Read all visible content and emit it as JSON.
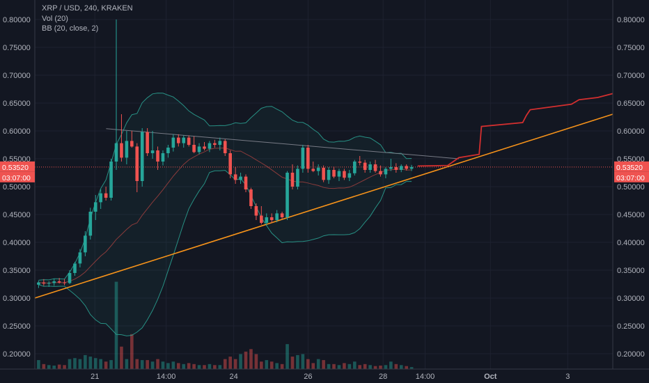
{
  "legend": {
    "symbol": "XRP / USD, 240, KRAKEN",
    "volume": "Vol (20)",
    "bb": "BB (20, close, 2)"
  },
  "colors": {
    "background": "#131722",
    "up": "#26a69a",
    "down": "#ef5350",
    "bb_band": "#2a9d8f",
    "bb_basis": "#8a3b3b",
    "trendline": "#f7931a",
    "projection": "#d32f2f",
    "resistance": "#787b86",
    "price_tag": "#ef5350"
  },
  "chart_data": {
    "type": "candlestick",
    "title": "XRP / USD, 240, KRAKEN",
    "ylim": [
      0.18,
      0.82
    ],
    "y_ticks": [
      "0.80000",
      "0.75000",
      "0.70000",
      "0.65000",
      "0.60000",
      "0.55000",
      "0.50000",
      "0.45000",
      "0.40000",
      "0.35000",
      "0.30000",
      "0.25000",
      "0.20000"
    ],
    "y_tick_values": [
      0.8,
      0.75,
      0.7,
      0.65,
      0.6,
      0.55,
      0.5,
      0.45,
      0.4,
      0.35,
      0.3,
      0.25,
      0.2
    ],
    "x_ticks": [
      {
        "label": "21",
        "x": 0.1
      },
      {
        "label": "14:00",
        "x": 1.05
      },
      {
        "label": "24",
        "x": 1.95
      },
      {
        "label": "26",
        "x": 2.94
      },
      {
        "label": "28",
        "x": 3.94
      },
      {
        "label": "14:00",
        "x": 4.5
      },
      {
        "label": "Oct",
        "x": 5.37,
        "bold": true
      },
      {
        "label": "3",
        "x": 6.4
      }
    ],
    "xlim": [
      -0.7,
      7.0
    ],
    "current_price": "0.53520",
    "current_price_value": 0.5352,
    "countdown": "03:07:00",
    "candles": [
      {
        "o": 0.324,
        "h": 0.331,
        "l": 0.318,
        "c": 0.328
      },
      {
        "o": 0.328,
        "h": 0.334,
        "l": 0.322,
        "c": 0.326
      },
      {
        "o": 0.326,
        "h": 0.33,
        "l": 0.32,
        "c": 0.327
      },
      {
        "o": 0.327,
        "h": 0.335,
        "l": 0.322,
        "c": 0.33
      },
      {
        "o": 0.33,
        "h": 0.336,
        "l": 0.326,
        "c": 0.328
      },
      {
        "o": 0.328,
        "h": 0.334,
        "l": 0.323,
        "c": 0.327
      },
      {
        "o": 0.327,
        "h": 0.35,
        "l": 0.325,
        "c": 0.345
      },
      {
        "o": 0.345,
        "h": 0.365,
        "l": 0.34,
        "c": 0.362
      },
      {
        "o": 0.362,
        "h": 0.388,
        "l": 0.355,
        "c": 0.382
      },
      {
        "o": 0.382,
        "h": 0.42,
        "l": 0.375,
        "c": 0.412
      },
      {
        "o": 0.412,
        "h": 0.462,
        "l": 0.405,
        "c": 0.455
      },
      {
        "o": 0.455,
        "h": 0.485,
        "l": 0.44,
        "c": 0.472
      },
      {
        "o": 0.472,
        "h": 0.495,
        "l": 0.46,
        "c": 0.488
      },
      {
        "o": 0.488,
        "h": 0.5,
        "l": 0.475,
        "c": 0.48
      },
      {
        "o": 0.48,
        "h": 0.55,
        "l": 0.475,
        "c": 0.545
      },
      {
        "o": 0.545,
        "h": 0.8,
        "l": 0.53,
        "c": 0.578
      },
      {
        "o": 0.578,
        "h": 0.63,
        "l": 0.545,
        "c": 0.552
      },
      {
        "o": 0.552,
        "h": 0.6,
        "l": 0.54,
        "c": 0.582
      },
      {
        "o": 0.582,
        "h": 0.6,
        "l": 0.57,
        "c": 0.572
      },
      {
        "o": 0.572,
        "h": 0.578,
        "l": 0.49,
        "c": 0.51
      },
      {
        "o": 0.51,
        "h": 0.605,
        "l": 0.5,
        "c": 0.598
      },
      {
        "o": 0.598,
        "h": 0.605,
        "l": 0.555,
        "c": 0.56
      },
      {
        "o": 0.56,
        "h": 0.6,
        "l": 0.55,
        "c": 0.565
      },
      {
        "o": 0.565,
        "h": 0.572,
        "l": 0.53,
        "c": 0.545
      },
      {
        "o": 0.545,
        "h": 0.565,
        "l": 0.538,
        "c": 0.56
      },
      {
        "o": 0.56,
        "h": 0.575,
        "l": 0.552,
        "c": 0.57
      },
      {
        "o": 0.57,
        "h": 0.594,
        "l": 0.563,
        "c": 0.588
      },
      {
        "o": 0.588,
        "h": 0.594,
        "l": 0.572,
        "c": 0.578
      },
      {
        "o": 0.578,
        "h": 0.592,
        "l": 0.57,
        "c": 0.588
      },
      {
        "o": 0.588,
        "h": 0.592,
        "l": 0.572,
        "c": 0.575
      },
      {
        "o": 0.575,
        "h": 0.59,
        "l": 0.56,
        "c": 0.562
      },
      {
        "o": 0.562,
        "h": 0.578,
        "l": 0.558,
        "c": 0.572
      },
      {
        "o": 0.572,
        "h": 0.58,
        "l": 0.565,
        "c": 0.568
      },
      {
        "o": 0.568,
        "h": 0.582,
        "l": 0.562,
        "c": 0.578
      },
      {
        "o": 0.578,
        "h": 0.584,
        "l": 0.57,
        "c": 0.575
      },
      {
        "o": 0.575,
        "h": 0.588,
        "l": 0.565,
        "c": 0.582
      },
      {
        "o": 0.582,
        "h": 0.585,
        "l": 0.555,
        "c": 0.56
      },
      {
        "o": 0.56,
        "h": 0.565,
        "l": 0.515,
        "c": 0.522
      },
      {
        "o": 0.522,
        "h": 0.535,
        "l": 0.505,
        "c": 0.512
      },
      {
        "o": 0.512,
        "h": 0.525,
        "l": 0.505,
        "c": 0.518
      },
      {
        "o": 0.518,
        "h": 0.522,
        "l": 0.49,
        "c": 0.495
      },
      {
        "o": 0.495,
        "h": 0.498,
        "l": 0.46,
        "c": 0.465
      },
      {
        "o": 0.465,
        "h": 0.47,
        "l": 0.44,
        "c": 0.448
      },
      {
        "o": 0.448,
        "h": 0.465,
        "l": 0.432,
        "c": 0.435
      },
      {
        "o": 0.435,
        "h": 0.452,
        "l": 0.43,
        "c": 0.445
      },
      {
        "o": 0.445,
        "h": 0.452,
        "l": 0.435,
        "c": 0.44
      },
      {
        "o": 0.44,
        "h": 0.458,
        "l": 0.436,
        "c": 0.452
      },
      {
        "o": 0.452,
        "h": 0.455,
        "l": 0.442,
        "c": 0.445
      },
      {
        "o": 0.445,
        "h": 0.528,
        "l": 0.44,
        "c": 0.525
      },
      {
        "o": 0.525,
        "h": 0.54,
        "l": 0.495,
        "c": 0.5
      },
      {
        "o": 0.5,
        "h": 0.538,
        "l": 0.495,
        "c": 0.532
      },
      {
        "o": 0.532,
        "h": 0.575,
        "l": 0.525,
        "c": 0.57
      },
      {
        "o": 0.57,
        "h": 0.575,
        "l": 0.525,
        "c": 0.532
      },
      {
        "o": 0.532,
        "h": 0.545,
        "l": 0.526,
        "c": 0.528
      },
      {
        "o": 0.528,
        "h": 0.54,
        "l": 0.52,
        "c": 0.534
      },
      {
        "o": 0.534,
        "h": 0.538,
        "l": 0.508,
        "c": 0.512
      },
      {
        "o": 0.512,
        "h": 0.535,
        "l": 0.505,
        "c": 0.53
      },
      {
        "o": 0.53,
        "h": 0.536,
        "l": 0.515,
        "c": 0.518
      },
      {
        "o": 0.518,
        "h": 0.532,
        "l": 0.51,
        "c": 0.528
      },
      {
        "o": 0.528,
        "h": 0.532,
        "l": 0.512,
        "c": 0.516
      },
      {
        "o": 0.516,
        "h": 0.53,
        "l": 0.51,
        "c": 0.524
      },
      {
        "o": 0.524,
        "h": 0.548,
        "l": 0.52,
        "c": 0.545
      },
      {
        "o": 0.545,
        "h": 0.555,
        "l": 0.538,
        "c": 0.543
      },
      {
        "o": 0.543,
        "h": 0.548,
        "l": 0.525,
        "c": 0.53
      },
      {
        "o": 0.53,
        "h": 0.545,
        "l": 0.525,
        "c": 0.54
      },
      {
        "o": 0.54,
        "h": 0.548,
        "l": 0.525,
        "c": 0.528
      },
      {
        "o": 0.528,
        "h": 0.538,
        "l": 0.518,
        "c": 0.522
      },
      {
        "o": 0.522,
        "h": 0.535,
        "l": 0.515,
        "c": 0.532
      },
      {
        "o": 0.532,
        "h": 0.55,
        "l": 0.528,
        "c": 0.535
      },
      {
        "o": 0.535,
        "h": 0.542,
        "l": 0.525,
        "c": 0.53
      },
      {
        "o": 0.53,
        "h": 0.54,
        "l": 0.526,
        "c": 0.537
      },
      {
        "o": 0.537,
        "h": 0.54,
        "l": 0.529,
        "c": 0.532
      },
      {
        "o": 0.532,
        "h": 0.539,
        "l": 0.528,
        "c": 0.5352
      }
    ],
    "volume_ylim": [
      0,
      0.45
    ],
    "volumes": [
      0.018,
      0.01,
      0.008,
      0.007,
      0.009,
      0.008,
      0.02,
      0.022,
      0.02,
      0.028,
      0.025,
      0.022,
      0.02,
      0.015,
      0.018,
      0.175,
      0.045,
      0.02,
      0.07,
      0.02,
      0.018,
      0.018,
      0.015,
      0.02,
      0.015,
      0.012,
      0.015,
      0.012,
      0.01,
      0.012,
      0.01,
      0.008,
      0.008,
      0.01,
      0.008,
      0.008,
      0.02,
      0.025,
      0.02,
      0.03,
      0.035,
      0.04,
      0.03,
      0.015,
      0.018,
      0.015,
      0.012,
      0.01,
      0.05,
      0.025,
      0.028,
      0.03,
      0.02,
      0.012,
      0.02,
      0.018,
      0.01,
      0.01,
      0.008,
      0.012,
      0.01,
      0.015,
      0.008,
      0.01,
      0.008,
      0.006,
      0.007,
      0.008,
      0.015,
      0.01,
      0.008,
      0.006,
      0.004
    ],
    "bb_upper_rel": "estimated",
    "trendline": {
      "p1": {
        "x": -0.7,
        "y": 0.3
      },
      "p2": {
        "x": 7.0,
        "y": 0.63
      }
    },
    "resistance": {
      "p1": {
        "x": 0.25,
        "y": 0.604
      },
      "p2": {
        "x": 4.95,
        "y": 0.55
      }
    },
    "projection": [
      {
        "x": 4.4,
        "y": 0.537
      },
      {
        "x": 4.8,
        "y": 0.538
      },
      {
        "x": 4.95,
        "y": 0.552
      },
      {
        "x": 5.22,
        "y": 0.558
      },
      {
        "x": 5.25,
        "y": 0.608
      },
      {
        "x": 5.8,
        "y": 0.615
      },
      {
        "x": 5.85,
        "y": 0.628
      },
      {
        "x": 5.9,
        "y": 0.638
      },
      {
        "x": 6.45,
        "y": 0.648
      },
      {
        "x": 6.55,
        "y": 0.656
      },
      {
        "x": 6.8,
        "y": 0.66
      },
      {
        "x": 7.0,
        "y": 0.667
      }
    ]
  }
}
